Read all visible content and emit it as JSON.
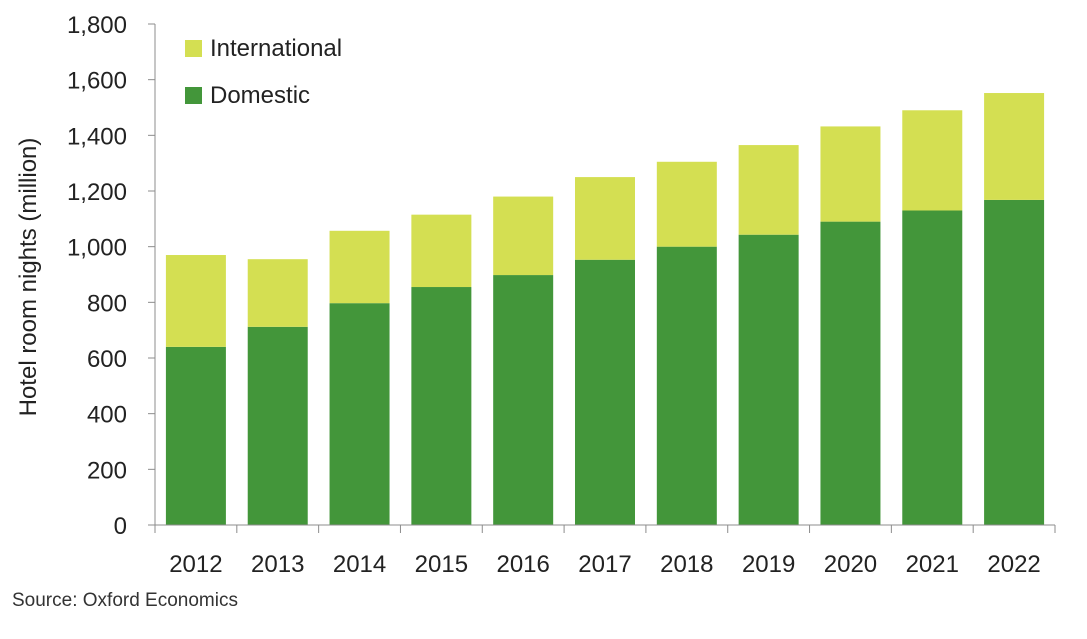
{
  "chart_data": {
    "type": "bar",
    "stacked": true,
    "title": "",
    "xlabel": "",
    "ylabel": "Hotel room nights (million)",
    "ylim": [
      0,
      1800
    ],
    "yticks": [
      0,
      200,
      400,
      600,
      800,
      1000,
      1200,
      1400,
      1600,
      1800
    ],
    "ytick_labels": [
      "0",
      "200",
      "400",
      "600",
      "800",
      "1,000",
      "1,200",
      "1,400",
      "1,600",
      "1,800"
    ],
    "categories": [
      "2012",
      "2013",
      "2014",
      "2015",
      "2016",
      "2017",
      "2018",
      "2019",
      "2020",
      "2021",
      "2022"
    ],
    "series": [
      {
        "name": "Domestic",
        "color": "#43963a",
        "values": [
          640,
          712,
          797,
          855,
          898,
          953,
          1000,
          1043,
          1090,
          1130,
          1168
        ]
      },
      {
        "name": "International",
        "color": "#d4df52",
        "values": [
          330,
          243,
          260,
          260,
          282,
          297,
          305,
          322,
          342,
          360,
          384
        ]
      }
    ],
    "legend": {
      "position": "top-left",
      "order": [
        "International",
        "Domestic"
      ]
    },
    "grid": false
  },
  "source": "Source:  Oxford Economics"
}
